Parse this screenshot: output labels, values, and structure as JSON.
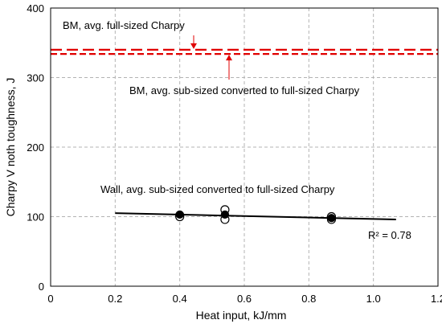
{
  "chart_data": {
    "type": "scatter",
    "title": "",
    "xlabel": "Heat input, kJ/mm",
    "ylabel": "Charpy V noth toughness, J",
    "xlim": [
      0,
      1.2
    ],
    "ylim": [
      0,
      400
    ],
    "x_ticks": [
      "0",
      "0.2",
      "0.4",
      "0.6",
      "0.8",
      "1.0",
      "1.2"
    ],
    "y_ticks": [
      "0",
      "100",
      "200",
      "300",
      "400"
    ],
    "grid": true,
    "reference_lines": [
      {
        "label": "BM, avg. full-sized Charpy",
        "y": 340,
        "style": "long-dash",
        "color": "#e00000"
      },
      {
        "label": "BM, avg. sub-sized converted to full-sized Charpy",
        "y": 334,
        "style": "short-dash",
        "color": "#e00000"
      }
    ],
    "series": [
      {
        "label": "Wall, avg. sub-sized converted to full-sized Charpy",
        "points": [
          {
            "x": 0.4,
            "y": 102,
            "filled": false
          },
          {
            "x": 0.4,
            "y": 100,
            "filled": false
          },
          {
            "x": 0.4,
            "y": 103,
            "filled": true
          },
          {
            "x": 0.54,
            "y": 110,
            "filled": false
          },
          {
            "x": 0.54,
            "y": 96,
            "filled": false
          },
          {
            "x": 0.54,
            "y": 103,
            "filled": true
          },
          {
            "x": 0.87,
            "y": 100,
            "filled": false
          },
          {
            "x": 0.87,
            "y": 96,
            "filled": false
          },
          {
            "x": 0.87,
            "y": 98,
            "filled": true
          }
        ],
        "trendline": {
          "x": [
            0.2,
            1.07
          ],
          "y": [
            105,
            96
          ],
          "r2_label": "R² = 0.78"
        }
      }
    ]
  }
}
